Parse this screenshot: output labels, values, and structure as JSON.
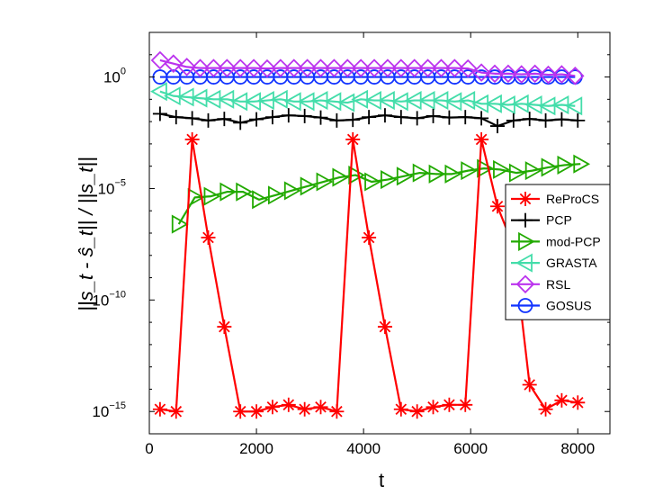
{
  "chart_data": {
    "type": "line",
    "title": "",
    "xlabel": "t",
    "ylabel": "||s_t - ŝ_t|| / ||s_t||",
    "xlim": [
      0,
      8600
    ],
    "ylim_log10": [
      -16,
      2
    ],
    "x_ticks": [
      0,
      2000,
      4000,
      6000,
      8000
    ],
    "x_tick_labels": [
      "0",
      "2000",
      "4000",
      "6000",
      "8000"
    ],
    "y_ticks_log10": [
      0,
      -5,
      -10,
      -15
    ],
    "y_tick_labels": [
      {
        "base": "10",
        "exp": "0"
      },
      {
        "base": "10",
        "exp": "−5"
      },
      {
        "base": "10",
        "exp": "−10"
      },
      {
        "base": "10",
        "exp": "−15"
      }
    ],
    "legend_location": "right",
    "series": [
      {
        "name": "ReProCS",
        "color": "#ff0000",
        "marker": "asterisk",
        "x": [
          200,
          500,
          800,
          1100,
          1400,
          1700,
          2000,
          2300,
          2600,
          2900,
          3200,
          3500,
          3800,
          4100,
          4400,
          4700,
          5000,
          5300,
          5600,
          5900,
          6200,
          6500,
          6800,
          7100,
          7400,
          7700,
          8000
        ],
        "log10y": [
          -14.9,
          -15.0,
          -2.8,
          -7.2,
          -11.2,
          -15.0,
          -15.0,
          -14.8,
          -14.7,
          -14.9,
          -14.8,
          -15.0,
          -2.8,
          -7.2,
          -11.2,
          -14.9,
          -15.0,
          -14.8,
          -14.7,
          -14.7,
          -2.8,
          -5.8,
          -7.6,
          -13.8,
          -14.9,
          -14.5,
          -14.6
        ]
      },
      {
        "name": "PCP",
        "color": "#000000",
        "marker": "plus",
        "x": [
          200,
          500,
          800,
          1100,
          1400,
          1700,
          2000,
          2300,
          2600,
          2900,
          3200,
          3500,
          3800,
          4100,
          4400,
          4700,
          5000,
          5300,
          5600,
          5900,
          6200,
          6500,
          6800,
          7100,
          7400,
          7700,
          8000
        ],
        "log10y": [
          -1.65,
          -1.8,
          -1.85,
          -1.95,
          -1.88,
          -2.05,
          -1.9,
          -1.8,
          -1.72,
          -1.75,
          -1.82,
          -1.95,
          -1.92,
          -1.8,
          -1.72,
          -1.8,
          -1.85,
          -1.75,
          -1.82,
          -1.8,
          -1.85,
          -2.2,
          -1.95,
          -1.88,
          -1.95,
          -1.9,
          -1.95
        ]
      },
      {
        "name": "mod-PCP",
        "color": "#22aa00",
        "marker": "triangle-right",
        "x": [
          550,
          850,
          1150,
          1450,
          1750,
          2050,
          2350,
          2650,
          2950,
          3250,
          3550,
          3850,
          4150,
          4450,
          4750,
          5050,
          5350,
          5650,
          5950,
          6250,
          6550,
          6850,
          7150,
          7450,
          7750,
          8050
        ],
        "log10y": [
          -6.6,
          -5.4,
          -5.35,
          -5.15,
          -5.15,
          -5.5,
          -5.3,
          -5.1,
          -4.9,
          -4.7,
          -4.5,
          -4.4,
          -4.7,
          -4.6,
          -4.45,
          -4.3,
          -4.35,
          -4.35,
          -4.2,
          -4.1,
          -4.15,
          -4.3,
          -4.2,
          -4.05,
          -3.95,
          -3.9
        ]
      },
      {
        "name": "GRASTA",
        "color": "#44ddaa",
        "marker": "triangle-left",
        "x": [
          200,
          450,
          700,
          950,
          1200,
          1450,
          1700,
          1950,
          2200,
          2450,
          2700,
          2950,
          3200,
          3450,
          3700,
          3950,
          4200,
          4450,
          4700,
          4950,
          5200,
          5450,
          5700,
          5950,
          6200,
          6450,
          6700,
          6950,
          7200,
          7450,
          7700,
          7950
        ],
        "log10y": [
          -0.65,
          -0.85,
          -0.9,
          -0.95,
          -1.0,
          -1.0,
          -1.1,
          -1.1,
          -1.05,
          -1.0,
          -1.1,
          -1.1,
          -1.05,
          -1.1,
          -1.15,
          -1.0,
          -1.05,
          -1.05,
          -1.1,
          -1.05,
          -1.05,
          -1.05,
          -1.1,
          -1.05,
          -1.2,
          -1.2,
          -1.25,
          -1.2,
          -1.25,
          -1.3,
          -1.25,
          -1.3
        ]
      },
      {
        "name": "RSL",
        "color": "#bb33ee",
        "marker": "diamond",
        "x": [
          200,
          450,
          700,
          950,
          1200,
          1450,
          1700,
          1950,
          2200,
          2450,
          2700,
          2950,
          3200,
          3450,
          3700,
          3950,
          4200,
          4450,
          4700,
          4950,
          5200,
          5450,
          5700,
          5950,
          6200,
          6450,
          6700,
          6950,
          7200,
          7450,
          7700,
          7950
        ],
        "log10y": [
          0.75,
          0.6,
          0.45,
          0.4,
          0.4,
          0.4,
          0.4,
          0.4,
          0.38,
          0.4,
          0.4,
          0.4,
          0.4,
          0.4,
          0.4,
          0.4,
          0.4,
          0.4,
          0.4,
          0.4,
          0.4,
          0.4,
          0.4,
          0.38,
          0.2,
          0.15,
          0.15,
          0.12,
          0.15,
          0.1,
          0.12,
          0.05
        ]
      },
      {
        "name": "GOSUS",
        "color": "#1133ff",
        "marker": "circle",
        "x": [
          200,
          450,
          700,
          950,
          1200,
          1450,
          1700,
          1950,
          2200,
          2450,
          2700,
          2950,
          3200,
          3450,
          3700,
          3950,
          4200,
          4450,
          4700,
          4950,
          5200,
          5450,
          5700,
          5950,
          6200,
          6450,
          6700,
          6950,
          7200,
          7450,
          7700,
          7950
        ],
        "log10y": [
          0,
          0,
          0,
          0,
          0,
          0,
          0,
          0,
          0,
          0,
          0,
          0,
          0,
          0,
          0,
          0,
          0,
          0,
          0,
          0,
          0,
          0,
          0,
          0,
          0,
          0,
          0,
          0,
          0,
          0,
          0,
          0
        ]
      }
    ]
  }
}
